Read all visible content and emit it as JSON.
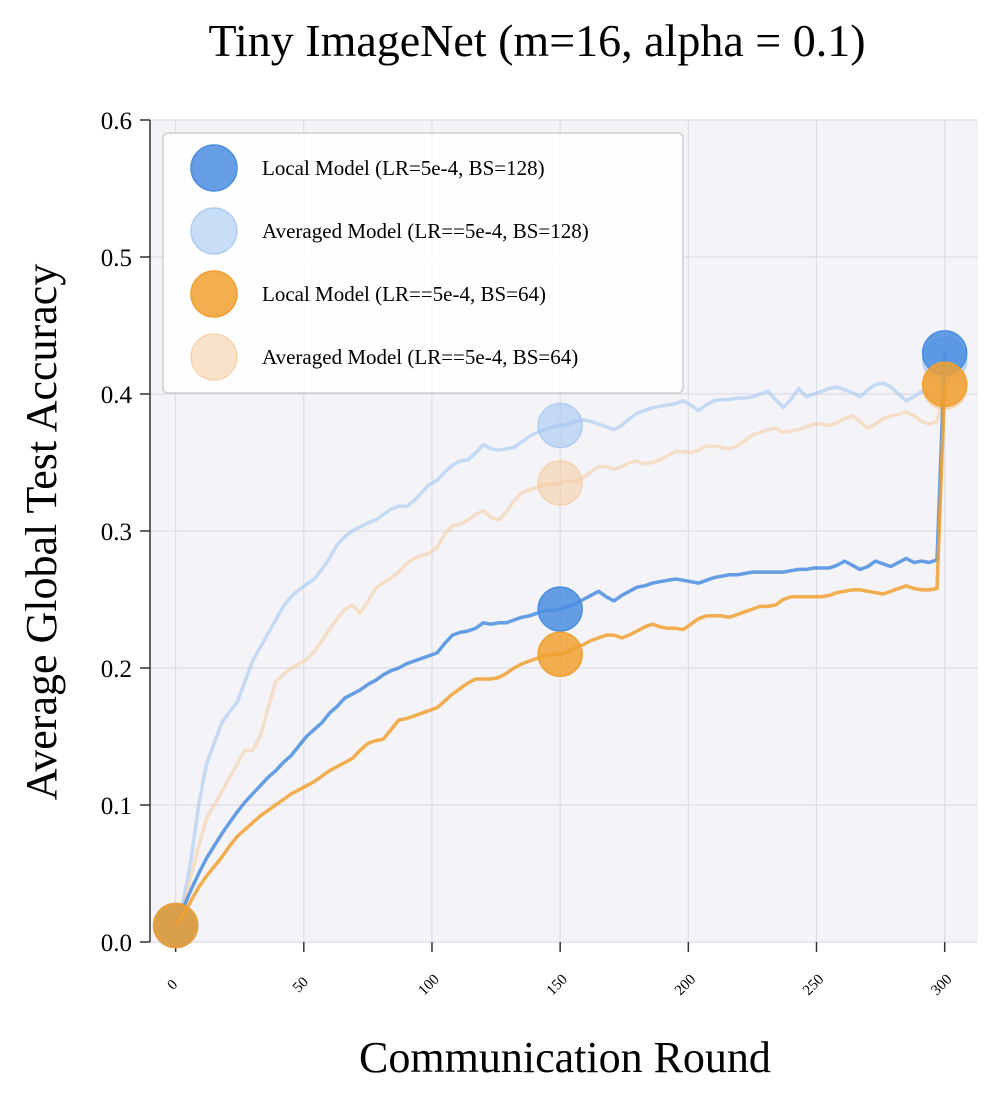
{
  "chart_data": {
    "type": "line",
    "title": "Tiny ImageNet (m=16, alpha = 0.1)",
    "xlabel": "Communication Round",
    "ylabel": "Average Global Test Accuracy",
    "xlim": [
      -10,
      313
    ],
    "ylim": [
      0,
      0.6
    ],
    "xticks": [
      0,
      50,
      100,
      150,
      200,
      250,
      300
    ],
    "xtick_labels": [
      "0",
      "50",
      "100",
      "150",
      "200",
      "250",
      "300"
    ],
    "yticks": [
      0,
      0.1,
      0.2,
      0.3,
      0.4,
      0.5,
      0.6
    ],
    "ytick_labels": [
      "0.0",
      "0.1",
      "0.2",
      "0.3",
      "0.4",
      "0.5",
      "0.6"
    ],
    "grid": true,
    "legend_position": "upper-left",
    "marker_x": [
      0,
      50,
      100,
      150,
      200,
      250,
      300
    ],
    "series": [
      {
        "name": "Local Model (LR=5e-4, BS=128)",
        "color": "#4a8de0",
        "alpha": 0.85,
        "x": [
          0,
          3,
          6,
          9,
          12,
          15,
          18,
          21,
          24,
          27,
          30,
          33,
          36,
          39,
          42,
          45,
          48,
          51,
          54,
          57,
          60,
          63,
          66,
          69,
          72,
          75,
          78,
          81,
          84,
          87,
          90,
          93,
          96,
          99,
          102,
          105,
          108,
          111,
          114,
          117,
          120,
          123,
          126,
          129,
          132,
          135,
          138,
          141,
          144,
          147,
          150,
          153,
          156,
          159,
          162,
          165,
          168,
          171,
          174,
          177,
          180,
          183,
          186,
          189,
          192,
          195,
          198,
          201,
          204,
          207,
          210,
          213,
          216,
          219,
          222,
          225,
          228,
          231,
          234,
          237,
          240,
          243,
          246,
          249,
          252,
          255,
          258,
          261,
          264,
          267,
          270,
          273,
          276,
          279,
          282,
          285,
          288,
          291,
          294,
          297,
          300
        ],
        "y": [
          0.012,
          0.025,
          0.038,
          0.05,
          0.061,
          0.07,
          0.079,
          0.087,
          0.095,
          0.102,
          0.108,
          0.114,
          0.12,
          0.125,
          0.131,
          0.136,
          0.143,
          0.15,
          0.155,
          0.16,
          0.167,
          0.172,
          0.178,
          0.181,
          0.184,
          0.188,
          0.191,
          0.195,
          0.198,
          0.2,
          0.203,
          0.205,
          0.207,
          0.209,
          0.211,
          0.218,
          0.224,
          0.226,
          0.227,
          0.229,
          0.233,
          0.232,
          0.233,
          0.233,
          0.235,
          0.237,
          0.238,
          0.24,
          0.242,
          0.242,
          0.243,
          0.245,
          0.247,
          0.25,
          0.253,
          0.256,
          0.252,
          0.249,
          0.253,
          0.256,
          0.259,
          0.26,
          0.262,
          0.263,
          0.264,
          0.265,
          0.264,
          0.263,
          0.262,
          0.264,
          0.266,
          0.267,
          0.268,
          0.268,
          0.269,
          0.27,
          0.27,
          0.27,
          0.27,
          0.27,
          0.271,
          0.272,
          0.272,
          0.273,
          0.273,
          0.273,
          0.275,
          0.278,
          0.275,
          0.272,
          0.274,
          0.278,
          0.276,
          0.274,
          0.277,
          0.28,
          0.277,
          0.278,
          0.277,
          0.279,
          0.43
        ]
      },
      {
        "name": "Averaged Model (LR==5e-4, BS=128)",
        "color": "#a4c6f0",
        "alpha": 0.6,
        "x": [
          0,
          3,
          6,
          9,
          12,
          15,
          18,
          21,
          24,
          27,
          30,
          33,
          36,
          39,
          42,
          45,
          48,
          51,
          54,
          57,
          60,
          63,
          66,
          69,
          72,
          75,
          78,
          81,
          84,
          87,
          90,
          93,
          96,
          99,
          102,
          105,
          108,
          111,
          114,
          117,
          120,
          123,
          126,
          129,
          132,
          135,
          138,
          141,
          144,
          147,
          150,
          153,
          156,
          159,
          162,
          165,
          168,
          171,
          174,
          177,
          180,
          183,
          186,
          189,
          192,
          195,
          198,
          201,
          204,
          207,
          210,
          213,
          216,
          219,
          222,
          225,
          228,
          231,
          234,
          237,
          240,
          243,
          246,
          249,
          252,
          255,
          258,
          261,
          264,
          267,
          270,
          273,
          276,
          279,
          282,
          285,
          288,
          291,
          294,
          297,
          300
        ],
        "y": [
          0.012,
          0.03,
          0.06,
          0.1,
          0.13,
          0.145,
          0.16,
          0.168,
          0.175,
          0.19,
          0.205,
          0.215,
          0.225,
          0.235,
          0.245,
          0.252,
          0.257,
          0.261,
          0.265,
          0.272,
          0.28,
          0.29,
          0.296,
          0.3,
          0.303,
          0.306,
          0.308,
          0.312,
          0.316,
          0.318,
          0.318,
          0.322,
          0.328,
          0.334,
          0.337,
          0.343,
          0.348,
          0.351,
          0.352,
          0.357,
          0.363,
          0.36,
          0.359,
          0.36,
          0.361,
          0.365,
          0.369,
          0.372,
          0.374,
          0.376,
          0.377,
          0.378,
          0.38,
          0.381,
          0.38,
          0.378,
          0.376,
          0.374,
          0.377,
          0.382,
          0.386,
          0.388,
          0.39,
          0.391,
          0.392,
          0.393,
          0.395,
          0.392,
          0.388,
          0.392,
          0.395,
          0.396,
          0.396,
          0.397,
          0.397,
          0.398,
          0.4,
          0.402,
          0.396,
          0.39,
          0.396,
          0.404,
          0.398,
          0.4,
          0.402,
          0.404,
          0.405,
          0.403,
          0.401,
          0.398,
          0.403,
          0.407,
          0.408,
          0.405,
          0.4,
          0.395,
          0.398,
          0.402,
          0.399,
          0.4,
          0.425
        ]
      },
      {
        "name": "Local Model (LR==5e-4, BS=64)",
        "color": "#f0a030",
        "alpha": 0.85,
        "x": [
          0,
          3,
          6,
          9,
          12,
          15,
          18,
          21,
          24,
          27,
          30,
          33,
          36,
          39,
          42,
          45,
          48,
          51,
          54,
          57,
          60,
          63,
          66,
          69,
          72,
          75,
          78,
          81,
          84,
          87,
          90,
          93,
          96,
          99,
          102,
          105,
          108,
          111,
          114,
          117,
          120,
          123,
          126,
          129,
          132,
          135,
          138,
          141,
          144,
          147,
          150,
          153,
          156,
          159,
          162,
          165,
          168,
          171,
          174,
          177,
          180,
          183,
          186,
          189,
          192,
          195,
          198,
          201,
          204,
          207,
          210,
          213,
          216,
          219,
          222,
          225,
          228,
          231,
          234,
          237,
          240,
          243,
          246,
          249,
          252,
          255,
          258,
          261,
          264,
          267,
          270,
          273,
          276,
          279,
          282,
          285,
          288,
          291,
          294,
          297,
          300
        ],
        "y": [
          0.012,
          0.02,
          0.03,
          0.04,
          0.048,
          0.055,
          0.062,
          0.07,
          0.077,
          0.082,
          0.087,
          0.092,
          0.096,
          0.1,
          0.104,
          0.108,
          0.111,
          0.114,
          0.117,
          0.121,
          0.125,
          0.128,
          0.131,
          0.134,
          0.14,
          0.145,
          0.147,
          0.148,
          0.155,
          0.162,
          0.163,
          0.165,
          0.167,
          0.169,
          0.171,
          0.176,
          0.181,
          0.185,
          0.189,
          0.192,
          0.192,
          0.192,
          0.193,
          0.196,
          0.2,
          0.203,
          0.205,
          0.207,
          0.209,
          0.21,
          0.21,
          0.212,
          0.215,
          0.217,
          0.22,
          0.222,
          0.224,
          0.224,
          0.222,
          0.224,
          0.227,
          0.23,
          0.232,
          0.23,
          0.229,
          0.229,
          0.228,
          0.232,
          0.236,
          0.238,
          0.238,
          0.238,
          0.237,
          0.239,
          0.241,
          0.243,
          0.245,
          0.245,
          0.246,
          0.25,
          0.252,
          0.252,
          0.252,
          0.252,
          0.252,
          0.253,
          0.255,
          0.256,
          0.257,
          0.257,
          0.256,
          0.255,
          0.254,
          0.256,
          0.258,
          0.26,
          0.258,
          0.257,
          0.257,
          0.258,
          0.407
        ]
      },
      {
        "name": "Averaged Model (LR==5e-4, BS=64)",
        "color": "#f5c898",
        "alpha": 0.5,
        "x": [
          0,
          3,
          6,
          9,
          12,
          15,
          18,
          21,
          24,
          27,
          30,
          33,
          36,
          39,
          42,
          45,
          48,
          51,
          54,
          57,
          60,
          63,
          66,
          69,
          72,
          75,
          78,
          81,
          84,
          87,
          90,
          93,
          96,
          99,
          102,
          105,
          108,
          111,
          114,
          117,
          120,
          123,
          126,
          129,
          132,
          135,
          138,
          141,
          144,
          147,
          150,
          153,
          156,
          159,
          162,
          165,
          168,
          171,
          174,
          177,
          180,
          183,
          186,
          189,
          192,
          195,
          198,
          201,
          204,
          207,
          210,
          213,
          216,
          219,
          222,
          225,
          228,
          231,
          234,
          237,
          240,
          243,
          246,
          249,
          252,
          255,
          258,
          261,
          264,
          267,
          270,
          273,
          276,
          279,
          282,
          285,
          288,
          291,
          294,
          297,
          300
        ],
        "y": [
          0.012,
          0.025,
          0.048,
          0.07,
          0.09,
          0.1,
          0.11,
          0.12,
          0.13,
          0.14,
          0.14,
          0.15,
          0.17,
          0.19,
          0.195,
          0.2,
          0.203,
          0.206,
          0.212,
          0.22,
          0.228,
          0.236,
          0.243,
          0.246,
          0.24,
          0.249,
          0.258,
          0.262,
          0.266,
          0.27,
          0.276,
          0.28,
          0.282,
          0.284,
          0.288,
          0.298,
          0.304,
          0.305,
          0.308,
          0.312,
          0.315,
          0.31,
          0.308,
          0.314,
          0.322,
          0.328,
          0.33,
          0.332,
          0.334,
          0.334,
          0.335,
          0.337,
          0.336,
          0.339,
          0.343,
          0.347,
          0.347,
          0.345,
          0.347,
          0.35,
          0.351,
          0.349,
          0.35,
          0.352,
          0.355,
          0.358,
          0.358,
          0.357,
          0.359,
          0.362,
          0.362,
          0.361,
          0.36,
          0.362,
          0.366,
          0.37,
          0.372,
          0.374,
          0.375,
          0.372,
          0.373,
          0.374,
          0.376,
          0.378,
          0.378,
          0.377,
          0.379,
          0.382,
          0.384,
          0.38,
          0.375,
          0.378,
          0.382,
          0.384,
          0.385,
          0.387,
          0.384,
          0.38,
          0.378,
          0.38,
          0.405
        ]
      }
    ]
  }
}
